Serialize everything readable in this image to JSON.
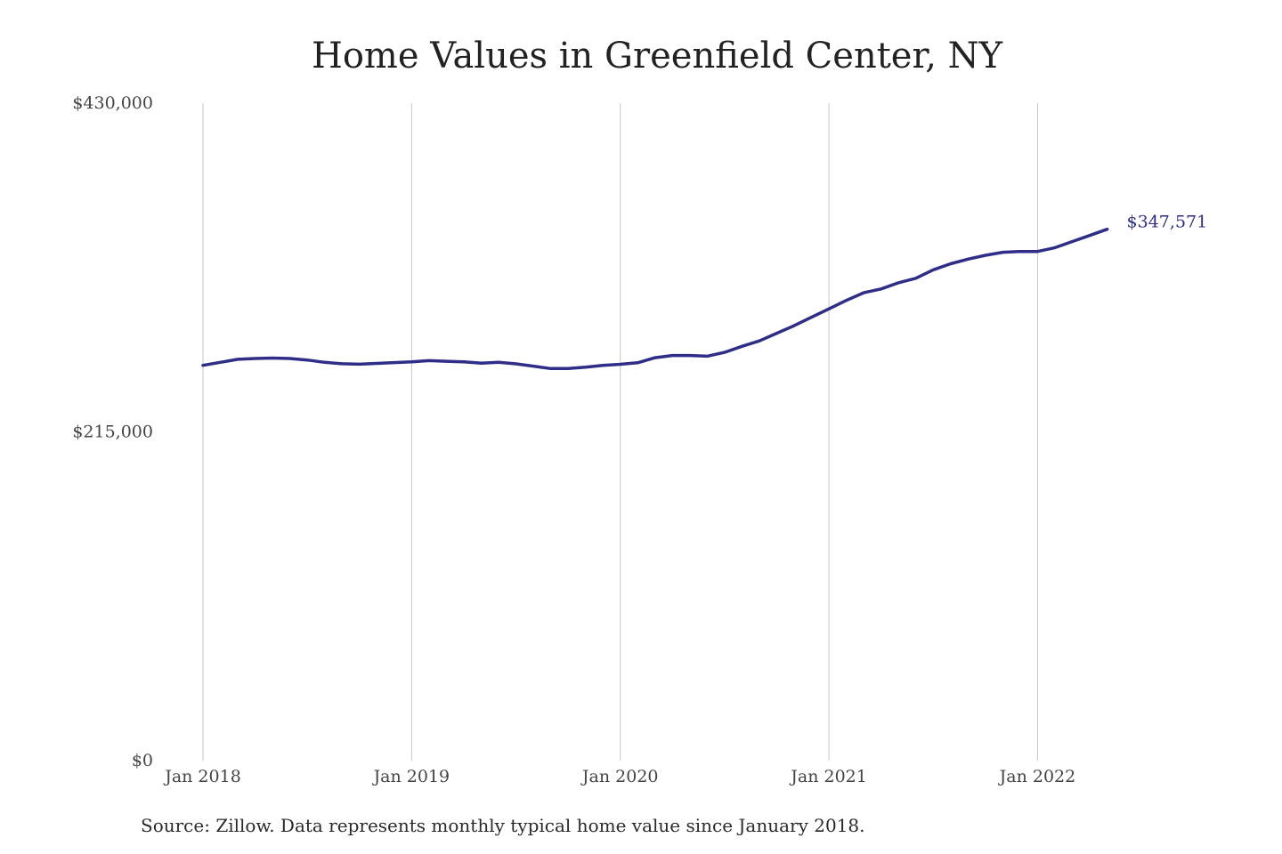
{
  "chart_data": {
    "type": "line",
    "title": "Home Values in Greenfield Center, NY",
    "source": "Source: Zillow. Data represents monthly typical home value since January 2018.",
    "xlabel": "",
    "ylabel": "",
    "x_ticks": [
      "Jan 2018",
      "Jan 2019",
      "Jan 2020",
      "Jan 2021",
      "Jan 2022"
    ],
    "y_ticks": [
      "$0",
      "$215,000",
      "$430,000"
    ],
    "ylim": [
      0,
      430000
    ],
    "xlim": [
      "2018-01",
      "2022-05"
    ],
    "grid": "vertical lines at January ticks",
    "line_color": "#2e2d88",
    "end_label": "$347,571",
    "series": [
      {
        "x": [
          "2018-01",
          "2018-02",
          "2018-03",
          "2018-04",
          "2018-05",
          "2018-06",
          "2018-07",
          "2018-08",
          "2018-09",
          "2018-10",
          "2018-11",
          "2018-12",
          "2019-01",
          "2019-02",
          "2019-03",
          "2019-04",
          "2019-05",
          "2019-06",
          "2019-07",
          "2019-08",
          "2019-09",
          "2019-10",
          "2019-11",
          "2019-12",
          "2020-01",
          "2020-02",
          "2020-03",
          "2020-04",
          "2020-05",
          "2020-06",
          "2020-07",
          "2020-08",
          "2020-09",
          "2020-10",
          "2020-11",
          "2020-12",
          "2021-01",
          "2021-02",
          "2021-03",
          "2021-04",
          "2021-05",
          "2021-06",
          "2021-07",
          "2021-08",
          "2021-09",
          "2021-10",
          "2021-11",
          "2021-12",
          "2022-01",
          "2022-02",
          "2022-03",
          "2022-04",
          "2022-05"
        ],
        "values": [
          258500,
          260500,
          262500,
          263000,
          263300,
          263000,
          262000,
          260500,
          259600,
          259300,
          259800,
          260300,
          260800,
          261600,
          261200,
          260800,
          260000,
          260500,
          259500,
          258000,
          256400,
          256500,
          257300,
          258500,
          259200,
          260200,
          263500,
          265000,
          265000,
          264500,
          267000,
          271000,
          274500,
          279500,
          284500,
          290000,
          295500,
          301000,
          306000,
          308500,
          312500,
          315500,
          321000,
          325000,
          328000,
          330500,
          332500,
          333000,
          333000,
          335500,
          339500,
          343500,
          347571
        ]
      }
    ]
  }
}
